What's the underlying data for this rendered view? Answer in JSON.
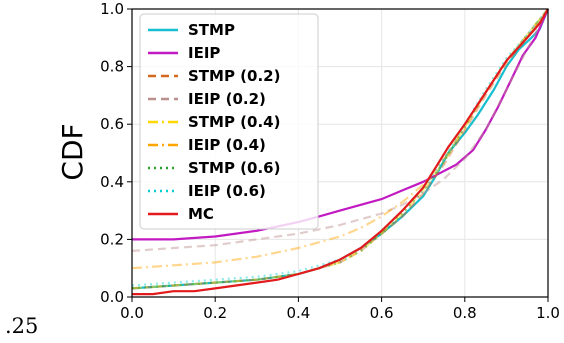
{
  "corner_label": ".25",
  "chart_data": {
    "type": "line",
    "title": "",
    "xlabel": "",
    "ylabel": "CDF",
    "xlim": [
      0.0,
      1.0
    ],
    "ylim": [
      0.0,
      1.0
    ],
    "xticks": [
      "0.0",
      "0.2",
      "0.4",
      "0.6",
      "0.8",
      "1.0"
    ],
    "yticks": [
      "0.0",
      "0.2",
      "0.4",
      "0.6",
      "0.8",
      "1.0"
    ],
    "grid": true,
    "legend_position": "top-left",
    "series": [
      {
        "name": "STMP",
        "color": "#17becf",
        "dash": "solid",
        "alpha": 1.0,
        "x": [
          0.0,
          0.1,
          0.2,
          0.3,
          0.4,
          0.45,
          0.5,
          0.55,
          0.6,
          0.65,
          0.7,
          0.73,
          0.76,
          0.8,
          0.83,
          0.87,
          0.9,
          0.93,
          0.96,
          0.98,
          1.0
        ],
        "y": [
          0.03,
          0.04,
          0.05,
          0.06,
          0.08,
          0.1,
          0.13,
          0.17,
          0.22,
          0.28,
          0.35,
          0.42,
          0.5,
          0.57,
          0.63,
          0.72,
          0.8,
          0.86,
          0.9,
          0.93,
          1.0
        ]
      },
      {
        "name": "IEIP",
        "color": "#c21ac2",
        "dash": "solid",
        "alpha": 1.0,
        "x": [
          0.0,
          0.1,
          0.2,
          0.3,
          0.4,
          0.45,
          0.5,
          0.55,
          0.6,
          0.65,
          0.7,
          0.74,
          0.78,
          0.82,
          0.85,
          0.88,
          0.91,
          0.94,
          0.97,
          1.0
        ],
        "y": [
          0.2,
          0.2,
          0.21,
          0.23,
          0.26,
          0.28,
          0.3,
          0.32,
          0.34,
          0.37,
          0.4,
          0.43,
          0.46,
          0.51,
          0.58,
          0.66,
          0.75,
          0.84,
          0.9,
          1.0
        ]
      },
      {
        "name": "STMP (0.2)",
        "color": "#d2691e",
        "dash": "8,5",
        "alpha": 0.45,
        "x": [
          0.0,
          0.1,
          0.2,
          0.3,
          0.4,
          0.5,
          0.55,
          0.6,
          0.65,
          0.7,
          0.75,
          0.8,
          0.85,
          0.9,
          0.95,
          1.0
        ],
        "y": [
          0.03,
          0.04,
          0.05,
          0.06,
          0.08,
          0.12,
          0.16,
          0.22,
          0.28,
          0.36,
          0.46,
          0.58,
          0.7,
          0.81,
          0.9,
          1.0
        ]
      },
      {
        "name": "IEIP (0.2)",
        "color": "#bc8f8f",
        "dash": "8,5",
        "alpha": 0.45,
        "x": [
          0.0,
          0.1,
          0.2,
          0.3,
          0.4,
          0.5,
          0.55,
          0.6,
          0.65,
          0.7,
          0.75,
          0.8,
          0.85,
          0.9,
          0.95,
          1.0
        ],
        "y": [
          0.16,
          0.17,
          0.18,
          0.2,
          0.22,
          0.25,
          0.27,
          0.29,
          0.32,
          0.36,
          0.41,
          0.48,
          0.58,
          0.72,
          0.86,
          1.0
        ]
      },
      {
        "name": "STMP (0.4)",
        "color": "#ffd700",
        "dash": "10,4,2,4",
        "alpha": 0.45,
        "x": [
          0.0,
          0.1,
          0.2,
          0.3,
          0.4,
          0.5,
          0.55,
          0.6,
          0.65,
          0.7,
          0.75,
          0.8,
          0.85,
          0.9,
          0.95,
          1.0
        ],
        "y": [
          0.03,
          0.04,
          0.05,
          0.06,
          0.08,
          0.12,
          0.16,
          0.22,
          0.29,
          0.37,
          0.47,
          0.59,
          0.71,
          0.82,
          0.91,
          1.0
        ]
      },
      {
        "name": "IEIP (0.4)",
        "color": "#ffa500",
        "dash": "10,4,2,4",
        "alpha": 0.45,
        "x": [
          0.0,
          0.1,
          0.2,
          0.3,
          0.4,
          0.5,
          0.55,
          0.6,
          0.65,
          0.7,
          0.75,
          0.8,
          0.85,
          0.9,
          0.95,
          1.0
        ],
        "y": [
          0.1,
          0.11,
          0.12,
          0.14,
          0.17,
          0.21,
          0.24,
          0.28,
          0.33,
          0.39,
          0.48,
          0.59,
          0.71,
          0.82,
          0.91,
          1.0
        ]
      },
      {
        "name": "STMP (0.6)",
        "color": "#2ca02c",
        "dash": "2,4",
        "alpha": 0.45,
        "x": [
          0.0,
          0.1,
          0.2,
          0.3,
          0.4,
          0.5,
          0.55,
          0.6,
          0.65,
          0.7,
          0.75,
          0.8,
          0.85,
          0.9,
          0.95,
          1.0
        ],
        "y": [
          0.03,
          0.04,
          0.05,
          0.06,
          0.08,
          0.12,
          0.16,
          0.22,
          0.29,
          0.37,
          0.47,
          0.59,
          0.71,
          0.82,
          0.91,
          1.0
        ]
      },
      {
        "name": "IEIP (0.6)",
        "color": "#00ced1",
        "dash": "2,4",
        "alpha": 0.45,
        "x": [
          0.0,
          0.1,
          0.2,
          0.3,
          0.4,
          0.5,
          0.55,
          0.6,
          0.65,
          0.7,
          0.75,
          0.8,
          0.85,
          0.9,
          0.95,
          1.0
        ],
        "y": [
          0.04,
          0.05,
          0.06,
          0.07,
          0.09,
          0.13,
          0.17,
          0.23,
          0.3,
          0.38,
          0.48,
          0.6,
          0.72,
          0.83,
          0.91,
          1.0
        ]
      },
      {
        "name": "MC",
        "color": "#e31a1c",
        "dash": "solid",
        "alpha": 1.0,
        "x": [
          0.0,
          0.05,
          0.1,
          0.15,
          0.2,
          0.25,
          0.3,
          0.35,
          0.4,
          0.45,
          0.5,
          0.55,
          0.6,
          0.65,
          0.7,
          0.73,
          0.76,
          0.8,
          0.85,
          0.9,
          0.95,
          0.98,
          1.0
        ],
        "y": [
          0.01,
          0.01,
          0.02,
          0.02,
          0.03,
          0.04,
          0.05,
          0.06,
          0.08,
          0.1,
          0.13,
          0.17,
          0.23,
          0.3,
          0.38,
          0.45,
          0.52,
          0.6,
          0.71,
          0.82,
          0.9,
          0.95,
          1.0
        ]
      }
    ]
  }
}
